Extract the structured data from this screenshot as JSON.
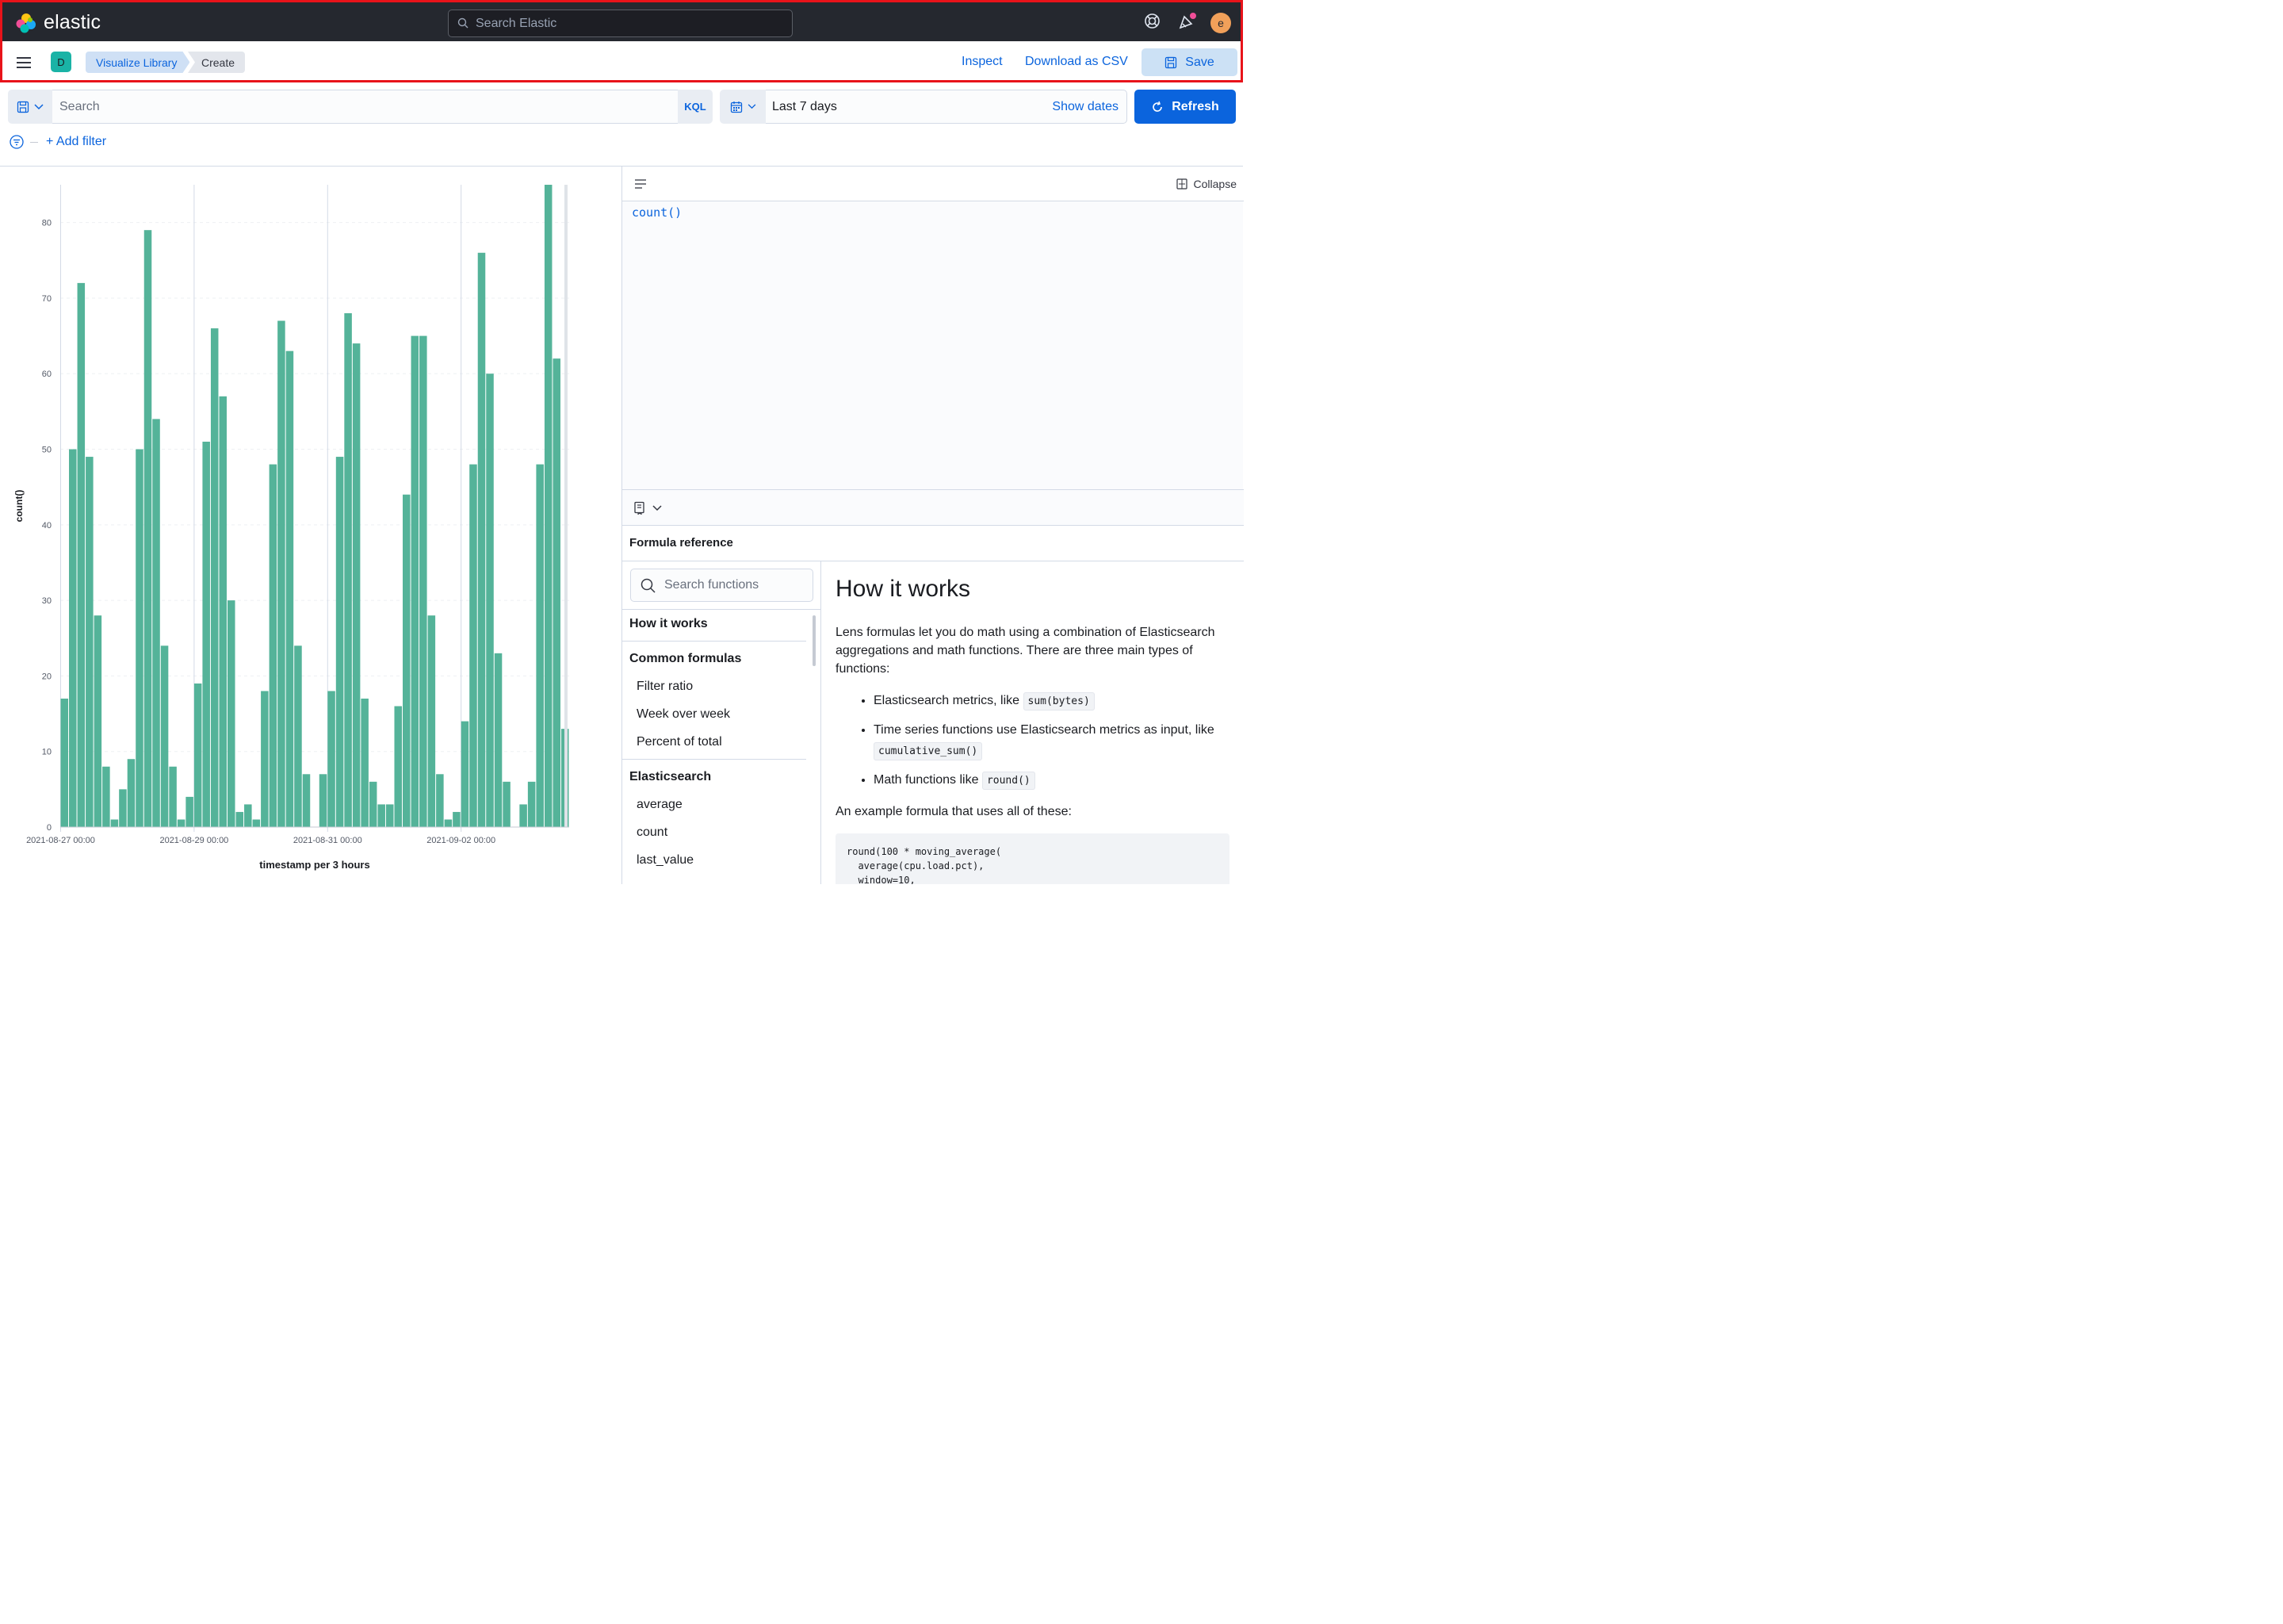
{
  "header": {
    "logo_text": "elastic",
    "search_placeholder": "Search Elastic",
    "avatar_letter": "e"
  },
  "subheader": {
    "space_badge": "D",
    "breadcrumbs": [
      "Visualize Library",
      "Create"
    ],
    "inspect": "Inspect",
    "download": "Download as CSV",
    "save": "Save"
  },
  "query": {
    "search_placeholder": "Search",
    "language": "KQL",
    "date_range": "Last 7 days",
    "show_dates": "Show dates",
    "refresh": "Refresh",
    "add_filter": "+ Add filter"
  },
  "chart_data": {
    "type": "bar",
    "ylabel": "count()",
    "xlabel": "timestamp per 3 hours",
    "ylim": [
      0,
      85
    ],
    "yticks": [
      0,
      10,
      20,
      30,
      40,
      50,
      60,
      70,
      80
    ],
    "xticks": [
      "2021-08-27 00:00",
      "2021-08-29 00:00",
      "2021-08-31 00:00",
      "2021-09-02 00:00"
    ],
    "bar_color": "#54b399",
    "values": [
      17,
      50,
      72,
      49,
      28,
      8,
      1,
      5,
      9,
      50,
      79,
      54,
      24,
      8,
      1,
      4,
      19,
      51,
      66,
      57,
      30,
      2,
      3,
      1,
      18,
      48,
      67,
      63,
      24,
      7,
      0,
      7,
      18,
      49,
      68,
      64,
      17,
      6,
      3,
      3,
      16,
      44,
      65,
      65,
      28,
      7,
      1,
      2,
      14,
      48,
      76,
      60,
      23,
      6,
      0,
      3,
      6,
      48,
      85,
      62,
      13
    ]
  },
  "editor": {
    "collapse": "Collapse",
    "formula": "count()"
  },
  "reference": {
    "title": "Formula reference",
    "search_placeholder": "Search functions",
    "nav": [
      {
        "type": "section",
        "label": "How it works"
      },
      {
        "type": "divider"
      },
      {
        "type": "section",
        "label": "Common formulas"
      },
      {
        "type": "item",
        "label": "Filter ratio"
      },
      {
        "type": "item",
        "label": "Week over week"
      },
      {
        "type": "item",
        "label": "Percent of total"
      },
      {
        "type": "divider"
      },
      {
        "type": "section",
        "label": "Elasticsearch"
      },
      {
        "type": "item",
        "label": "average"
      },
      {
        "type": "item",
        "label": "count"
      },
      {
        "type": "item",
        "label": "last_value"
      }
    ],
    "heading": "How it works",
    "intro": "Lens formulas let you do math using a combination of Elasticsearch aggregations and math functions. There are three main types of functions:",
    "bullets": [
      {
        "text": "Elasticsearch metrics, like ",
        "code": "sum(bytes)"
      },
      {
        "text": "Time series functions use Elasticsearch metrics as input, like ",
        "code": "cumulative_sum()"
      },
      {
        "text": "Math functions like ",
        "code": "round()"
      }
    ],
    "example_intro": "An example formula that uses all of these:",
    "example_code": "round(100 * moving_average(\n  average(cpu.load.pct),\n  window=10,"
  }
}
